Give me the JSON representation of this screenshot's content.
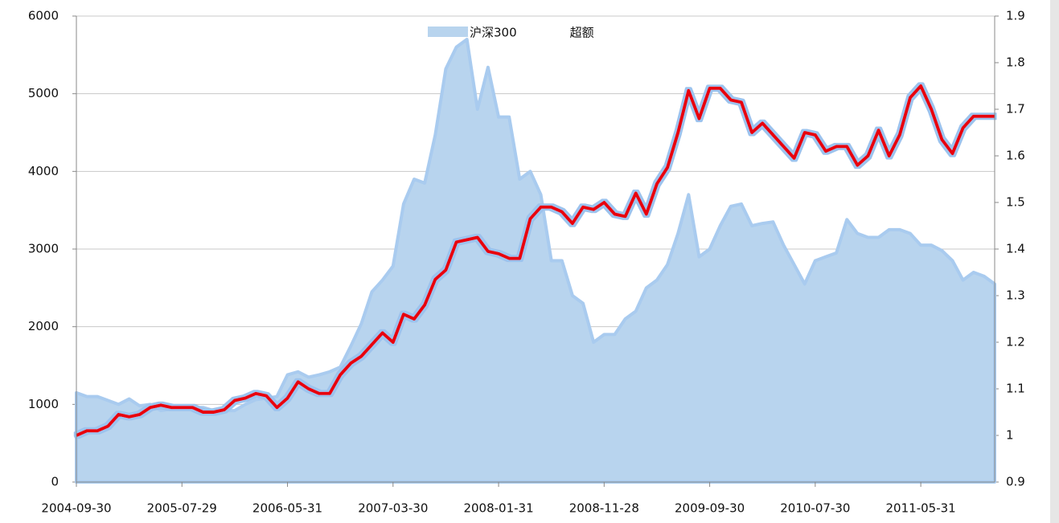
{
  "chart_data": {
    "type": "line",
    "categories": [
      "2004-09-30",
      null,
      null,
      null,
      null,
      null,
      null,
      null,
      null,
      null,
      "2005-07-29",
      null,
      null,
      null,
      null,
      null,
      null,
      null,
      null,
      null,
      "2006-05-31",
      null,
      null,
      null,
      null,
      null,
      null,
      null,
      null,
      null,
      "2007-03-30",
      null,
      null,
      null,
      null,
      null,
      null,
      null,
      null,
      null,
      "2008-01-31",
      null,
      null,
      null,
      null,
      null,
      null,
      null,
      null,
      null,
      "2008-11-28",
      null,
      null,
      null,
      null,
      null,
      null,
      null,
      null,
      null,
      "2009-09-30",
      null,
      null,
      null,
      null,
      null,
      null,
      null,
      null,
      null,
      "2010-07-30",
      null,
      null,
      null,
      null,
      null,
      null,
      null,
      null,
      null,
      "2011-05-31",
      null,
      null,
      null,
      null,
      null,
      null,
      null
    ],
    "series": [
      {
        "name": "沪深300",
        "type": "area",
        "color": "#b8d4ee",
        "values": [
          1150,
          1100,
          1100,
          1050,
          1000,
          1070,
          980,
          1000,
          920,
          940,
          940,
          960,
          960,
          920,
          920,
          920,
          1000,
          1060,
          1080,
          1100,
          1380,
          1420,
          1350,
          1380,
          1420,
          1480,
          1750,
          2040,
          2450,
          2600,
          2780,
          3580,
          3900,
          3850,
          4470,
          5320,
          5600,
          5700,
          4800,
          5340,
          4700,
          4700,
          3900,
          4000,
          3700,
          2850,
          2850,
          2400,
          2300,
          1800,
          1900,
          1900,
          2100,
          2200,
          2500,
          2600,
          2800,
          3200,
          3700,
          2900,
          3000,
          3300,
          3550,
          3580,
          3300,
          3330,
          3350,
          3050,
          2800,
          2550,
          2850,
          2900,
          2950,
          3380,
          3200,
          3150,
          3150,
          3250,
          3250,
          3200,
          3050,
          3050,
          2980,
          2850,
          2600,
          2700,
          2650,
          2550
        ]
      },
      {
        "name": "超额",
        "type": "line",
        "axis": "y2",
        "color": "#e8000b",
        "values": [
          1.0,
          1.01,
          1.01,
          1.02,
          1.045,
          1.04,
          1.045,
          1.06,
          1.065,
          1.06,
          1.06,
          1.06,
          1.05,
          1.05,
          1.055,
          1.075,
          1.08,
          1.09,
          1.085,
          1.06,
          1.08,
          1.115,
          1.1,
          1.09,
          1.09,
          1.13,
          1.155,
          1.17,
          1.195,
          1.22,
          1.2,
          1.26,
          1.25,
          1.28,
          1.335,
          1.355,
          1.415,
          1.42,
          1.425,
          1.395,
          1.39,
          1.38,
          1.38,
          1.465,
          1.49,
          1.49,
          1.48,
          1.455,
          1.49,
          1.485,
          1.5,
          1.475,
          1.47,
          1.52,
          1.475,
          1.54,
          1.575,
          1.65,
          1.74,
          1.68,
          1.745,
          1.745,
          1.72,
          1.715,
          1.65,
          1.67,
          1.645,
          1.62,
          1.595,
          1.65,
          1.645,
          1.61,
          1.62,
          1.62,
          1.58,
          1.6,
          1.655,
          1.6,
          1.645,
          1.725,
          1.75,
          1.7,
          1.635,
          1.605,
          1.66,
          1.685,
          1.685,
          1.685
        ]
      }
    ],
    "ylim": [
      0,
      6000
    ],
    "yticks": [
      0,
      1000,
      2000,
      3000,
      4000,
      5000,
      6000
    ],
    "y2lim": [
      0.9,
      1.9
    ],
    "y2ticks": [
      0.9,
      1,
      1.1,
      1.2,
      1.3,
      1.4,
      1.5,
      1.6,
      1.7,
      1.8,
      1.9
    ],
    "grid": true,
    "legend": "top"
  }
}
